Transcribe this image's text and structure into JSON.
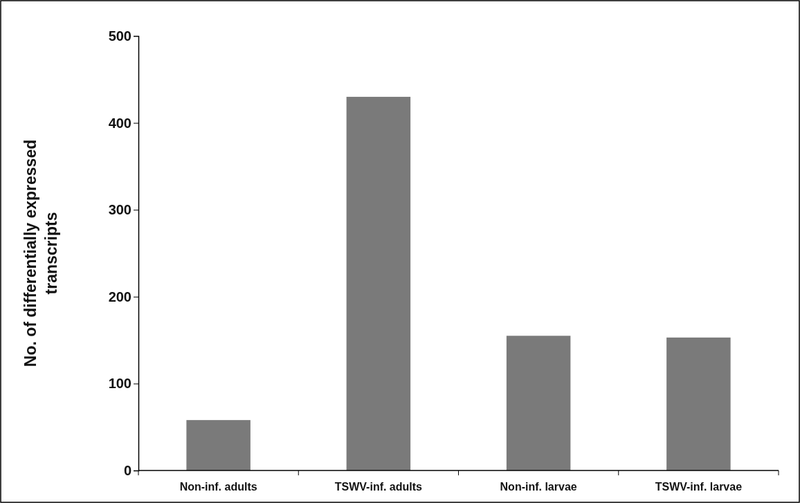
{
  "chart_data": {
    "type": "bar",
    "ylabel": "No. of differentially expressed\ntranscripts",
    "categories": [
      "Non-inf. adults",
      "TSWV-inf. adults",
      "Non-inf. larvae",
      "TSWV-inf. larvae"
    ],
    "values": [
      58,
      430,
      155,
      153
    ],
    "color": "#7a7a7a",
    "ylim": [
      0,
      500
    ],
    "yticks": [
      0,
      100,
      200,
      300,
      400,
      500
    ],
    "grid": false
  }
}
